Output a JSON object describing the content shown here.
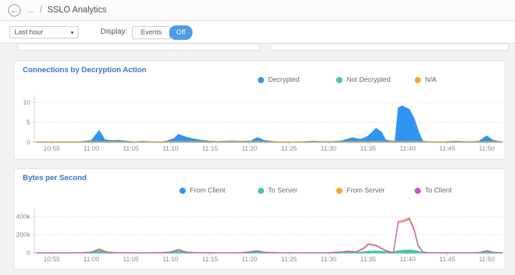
{
  "header": {
    "back_icon": "←",
    "dots": "...",
    "separator": "/",
    "title": "SSLO Analytics"
  },
  "toolbar": {
    "time_range_value": "Last hour",
    "caret_icon": "▾",
    "display_label": "Display:",
    "events_label": "Events",
    "off_label": "Off"
  },
  "colors": {
    "accent_blue": "#4f9ce8",
    "title_blue": "#3b74c8",
    "series_blue": "#2e96f2",
    "series_teal": "#4cc3a3",
    "series_orange": "#ffa41f",
    "series_magenta": "#c653c6"
  },
  "chart_data": [
    {
      "type": "area",
      "title": "Connections by Decryption Action",
      "xlabel": "",
      "ylabel": "",
      "grid": true,
      "legend_position": "top",
      "x_domain_minutes": [
        652.8,
        712
      ],
      "ylim": [
        0,
        11.7
      ],
      "yticks": [
        {
          "v": 0,
          "label": "0"
        },
        {
          "v": 5,
          "label": "5"
        },
        {
          "v": 10,
          "label": "10"
        }
      ],
      "xticks": [
        {
          "t": 655,
          "label": "10:55"
        },
        {
          "t": 660,
          "label": "11:00"
        },
        {
          "t": 665,
          "label": "11:05"
        },
        {
          "t": 670,
          "label": "11:10"
        },
        {
          "t": 675,
          "label": "11:15"
        },
        {
          "t": 680,
          "label": "11:20"
        },
        {
          "t": 685,
          "label": "11:25"
        },
        {
          "t": 690,
          "label": "11:30"
        },
        {
          "t": 695,
          "label": "11:35"
        },
        {
          "t": 700,
          "label": "11:40"
        },
        {
          "t": 705,
          "label": "11:45"
        },
        {
          "t": 710,
          "label": "11:50"
        }
      ],
      "draw_order": [
        1,
        0,
        2
      ],
      "series": [
        {
          "name": "Decrypted",
          "color": "#2e96f2",
          "style": "area",
          "points": [
            [
              653,
              0.1
            ],
            [
              654.5,
              0.12
            ],
            [
              655.5,
              0.15
            ],
            [
              656.5,
              0.12
            ],
            [
              658,
              0.1
            ],
            [
              659,
              0.25
            ],
            [
              660,
              0.45
            ],
            [
              661,
              3
            ],
            [
              661.7,
              0.65
            ],
            [
              662.5,
              0.45
            ],
            [
              663.5,
              0.5
            ],
            [
              664.5,
              0.3
            ],
            [
              665.5,
              0.15
            ],
            [
              666.5,
              0.3
            ],
            [
              667.5,
              0.15
            ],
            [
              668.5,
              0.1
            ],
            [
              669.5,
              0.3
            ],
            [
              670.5,
              1
            ],
            [
              671,
              2
            ],
            [
              672,
              1.3
            ],
            [
              673,
              0.85
            ],
            [
              674,
              0.5
            ],
            [
              675,
              0.3
            ],
            [
              676,
              0.2
            ],
            [
              677,
              0.3
            ],
            [
              678,
              0.35
            ],
            [
              679,
              0.25
            ],
            [
              680.2,
              0.35
            ],
            [
              681,
              1.25
            ],
            [
              681.8,
              0.5
            ],
            [
              683,
              0.2
            ],
            [
              684,
              0.12
            ],
            [
              685.5,
              0.1
            ],
            [
              687,
              0.2
            ],
            [
              688,
              0.28
            ],
            [
              689,
              0.2
            ],
            [
              690.5,
              0.22
            ],
            [
              691.5,
              0.35
            ],
            [
              692.3,
              0.75
            ],
            [
              693,
              1.15
            ],
            [
              694,
              0.7
            ],
            [
              695,
              1.55
            ],
            [
              696,
              3.5
            ],
            [
              696.7,
              2.5
            ],
            [
              697.2,
              0.6
            ],
            [
              698,
              0.3
            ],
            [
              698.4,
              0.35
            ],
            [
              698.8,
              8.7
            ],
            [
              699.3,
              9.1
            ],
            [
              700.2,
              8.3
            ],
            [
              700.8,
              6
            ],
            [
              701.4,
              2.5
            ],
            [
              701.9,
              0.3
            ],
            [
              703,
              0.15
            ],
            [
              704.5,
              0.12
            ],
            [
              706,
              0.3
            ],
            [
              707,
              0.22
            ],
            [
              708,
              0.18
            ],
            [
              709,
              0.3
            ],
            [
              710,
              1.6
            ],
            [
              710.8,
              0.5
            ],
            [
              712,
              0.12
            ]
          ]
        },
        {
          "name": "Not Decrypted",
          "color": "#4cc3a3",
          "style": "line",
          "points": [
            [
              653,
              0.04
            ],
            [
              712,
              0.04
            ]
          ]
        },
        {
          "name": "N/A",
          "color": "#ffa41f",
          "style": "line",
          "points": [
            [
              653,
              0.12
            ],
            [
              712,
              0.12
            ]
          ]
        }
      ]
    },
    {
      "type": "line",
      "title": "Bytes per Second",
      "xlabel": "",
      "ylabel": "",
      "grid": true,
      "legend_position": "top",
      "x_domain_minutes": [
        652.8,
        712
      ],
      "ylim": [
        0,
        490000
      ],
      "yticks": [
        {
          "v": 0,
          "label": "0"
        },
        {
          "v": 200000,
          "label": "200k"
        },
        {
          "v": 400000,
          "label": "400k"
        }
      ],
      "xticks": [
        {
          "t": 655,
          "label": "10:55"
        },
        {
          "t": 660,
          "label": "11:00"
        },
        {
          "t": 665,
          "label": "11:05"
        },
        {
          "t": 670,
          "label": "11:10"
        },
        {
          "t": 675,
          "label": "11:15"
        },
        {
          "t": 680,
          "label": "11:20"
        },
        {
          "t": 685,
          "label": "11:25"
        },
        {
          "t": 690,
          "label": "11:30"
        },
        {
          "t": 695,
          "label": "11:35"
        },
        {
          "t": 700,
          "label": "11:40"
        },
        {
          "t": 705,
          "label": "11:45"
        },
        {
          "t": 710,
          "label": "11:50"
        }
      ],
      "draw_order": [
        0,
        1,
        2,
        3
      ],
      "series": [
        {
          "name": "From Client",
          "color": "#2e96f2",
          "style": "line",
          "points": [
            [
              653,
              600
            ],
            [
              712,
              600
            ]
          ]
        },
        {
          "name": "To Server",
          "color": "#4cc3a3",
          "style": "area",
          "points": [
            [
              653,
              800
            ],
            [
              655,
              1000
            ],
            [
              657,
              800
            ],
            [
              659,
              2000
            ],
            [
              660,
              6000
            ],
            [
              661,
              24000
            ],
            [
              662,
              7000
            ],
            [
              663,
              3000
            ],
            [
              665,
              1500
            ],
            [
              667,
              1500
            ],
            [
              669,
              3000
            ],
            [
              670,
              6000
            ],
            [
              671,
              21000
            ],
            [
              672,
              6000
            ],
            [
              673,
              3000
            ],
            [
              675,
              1800
            ],
            [
              677,
              1500
            ],
            [
              679,
              2500
            ],
            [
              681,
              13000
            ],
            [
              682,
              4000
            ],
            [
              684,
              1800
            ],
            [
              686,
              1500
            ],
            [
              688,
              1800
            ],
            [
              690,
              2000
            ],
            [
              691.5,
              6000
            ],
            [
              692.5,
              10000
            ],
            [
              693.5,
              8000
            ],
            [
              694.5,
              14000
            ],
            [
              695,
              20000
            ],
            [
              696,
              23000
            ],
            [
              697,
              18000
            ],
            [
              698,
              8000
            ],
            [
              698.8,
              26000
            ],
            [
              699.5,
              31000
            ],
            [
              700.2,
              33000
            ],
            [
              700.8,
              30000
            ],
            [
              701.3,
              20000
            ],
            [
              701.9,
              8000
            ],
            [
              702.5,
              2500
            ],
            [
              704,
              1800
            ],
            [
              706,
              1800
            ],
            [
              708,
              1800
            ],
            [
              709,
              3000
            ],
            [
              710,
              13000
            ],
            [
              711,
              3000
            ],
            [
              712,
              1500
            ]
          ]
        },
        {
          "name": "From Server",
          "color": "#ffa41f",
          "style": "line",
          "points": [
            [
              653,
              1500
            ],
            [
              655,
              2000
            ],
            [
              657,
              1500
            ],
            [
              659,
              4000
            ],
            [
              660,
              12000
            ],
            [
              661,
              46000
            ],
            [
              662,
              12000
            ],
            [
              663,
              5000
            ],
            [
              665,
              2500
            ],
            [
              667,
              2500
            ],
            [
              669,
              5000
            ],
            [
              670,
              12000
            ],
            [
              671,
              41000
            ],
            [
              672,
              12000
            ],
            [
              673,
              5000
            ],
            [
              675,
              3000
            ],
            [
              677,
              2500
            ],
            [
              679,
              4000
            ],
            [
              681,
              26000
            ],
            [
              682,
              8000
            ],
            [
              684,
              3000
            ],
            [
              686,
              2500
            ],
            [
              688,
              3000
            ],
            [
              690,
              3500
            ],
            [
              691.5,
              12000
            ],
            [
              692.5,
              21000
            ],
            [
              693.5,
              14000
            ],
            [
              694.5,
              60000
            ],
            [
              695,
              103000
            ],
            [
              696,
              88000
            ],
            [
              697,
              40000
            ],
            [
              697.7,
              15000
            ],
            [
              698.2,
              10000
            ],
            [
              698.8,
              350000
            ],
            [
              699.5,
              362000
            ],
            [
              700.2,
              388000
            ],
            [
              700.8,
              270000
            ],
            [
              701.3,
              90000
            ],
            [
              701.9,
              15000
            ],
            [
              702.5,
              4000
            ],
            [
              704,
              3000
            ],
            [
              706,
              3000
            ],
            [
              708,
              3000
            ],
            [
              709,
              5000
            ],
            [
              710,
              27000
            ],
            [
              711,
              6000
            ],
            [
              712,
              2500
            ]
          ]
        },
        {
          "name": "To Client",
          "color": "#c653c6",
          "style": "line",
          "points": [
            [
              653,
              1200
            ],
            [
              655,
              1600
            ],
            [
              657,
              1200
            ],
            [
              659,
              3000
            ],
            [
              660,
              9000
            ],
            [
              661,
              38000
            ],
            [
              662,
              9000
            ],
            [
              663,
              4000
            ],
            [
              665,
              2000
            ],
            [
              667,
              2000
            ],
            [
              669,
              4000
            ],
            [
              670,
              9000
            ],
            [
              671,
              34000
            ],
            [
              672,
              9000
            ],
            [
              673,
              4000
            ],
            [
              675,
              2500
            ],
            [
              677,
              2000
            ],
            [
              679,
              3000
            ],
            [
              681,
              21000
            ],
            [
              682,
              6000
            ],
            [
              684,
              2500
            ],
            [
              686,
              2000
            ],
            [
              688,
              2500
            ],
            [
              690,
              3000
            ],
            [
              691.5,
              10000
            ],
            [
              692.5,
              18000
            ],
            [
              693.5,
              12000
            ],
            [
              694.5,
              52000
            ],
            [
              695,
              95000
            ],
            [
              696,
              80000
            ],
            [
              697,
              34000
            ],
            [
              697.7,
              12000
            ],
            [
              698.2,
              8000
            ],
            [
              698.8,
              335000
            ],
            [
              699.5,
              348000
            ],
            [
              700.2,
              372000
            ],
            [
              700.8,
              255000
            ],
            [
              701.3,
              80000
            ],
            [
              701.9,
              12000
            ],
            [
              702.5,
              3000
            ],
            [
              704,
              2500
            ],
            [
              706,
              2500
            ],
            [
              708,
              2500
            ],
            [
              709,
              4000
            ],
            [
              710,
              23000
            ],
            [
              711,
              5000
            ],
            [
              712,
              2000
            ]
          ]
        }
      ]
    }
  ]
}
